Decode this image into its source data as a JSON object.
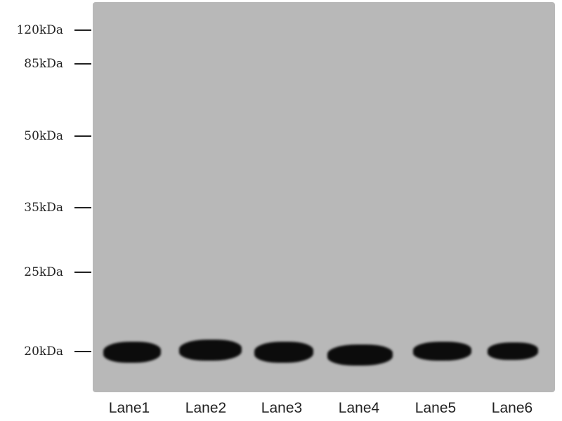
{
  "markers": [
    "120kDa",
    "85kDa",
    "50kDa",
    "35kDa",
    "25kDa",
    "20kDa"
  ],
  "lanes": [
    "Lane1",
    "Lane2",
    "Lane3",
    "Lane4",
    "Lane5",
    "Lane6"
  ]
}
